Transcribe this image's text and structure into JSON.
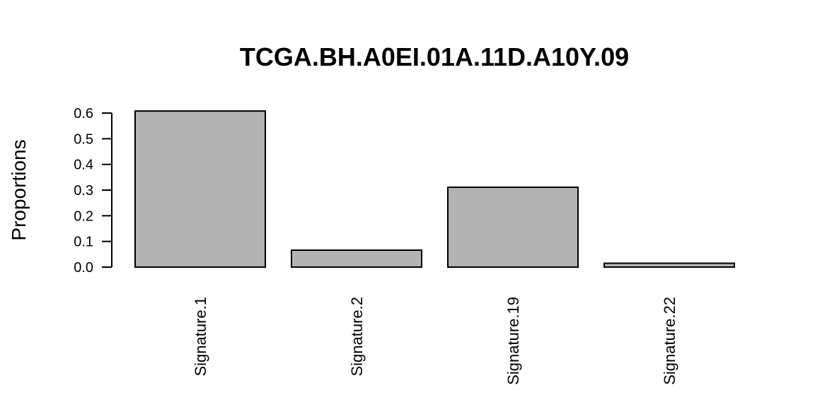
{
  "chart_data": {
    "type": "bar",
    "title": "TCGA.BH.A0EI.01A.11D.A10Y.09",
    "ylabel": "Proportions",
    "xlabel": "",
    "categories": [
      "Signature.1",
      "Signature.2",
      "Signature.19",
      "Signature.22"
    ],
    "values": [
      0.608,
      0.066,
      0.311,
      0.015
    ],
    "ylim": [
      0,
      0.6
    ],
    "yticks": [
      "0.0",
      "0.1",
      "0.2",
      "0.3",
      "0.4",
      "0.5",
      "0.6"
    ],
    "grid": false,
    "bar_color": "#b3b3b3",
    "bar_border_color": "#000000"
  }
}
